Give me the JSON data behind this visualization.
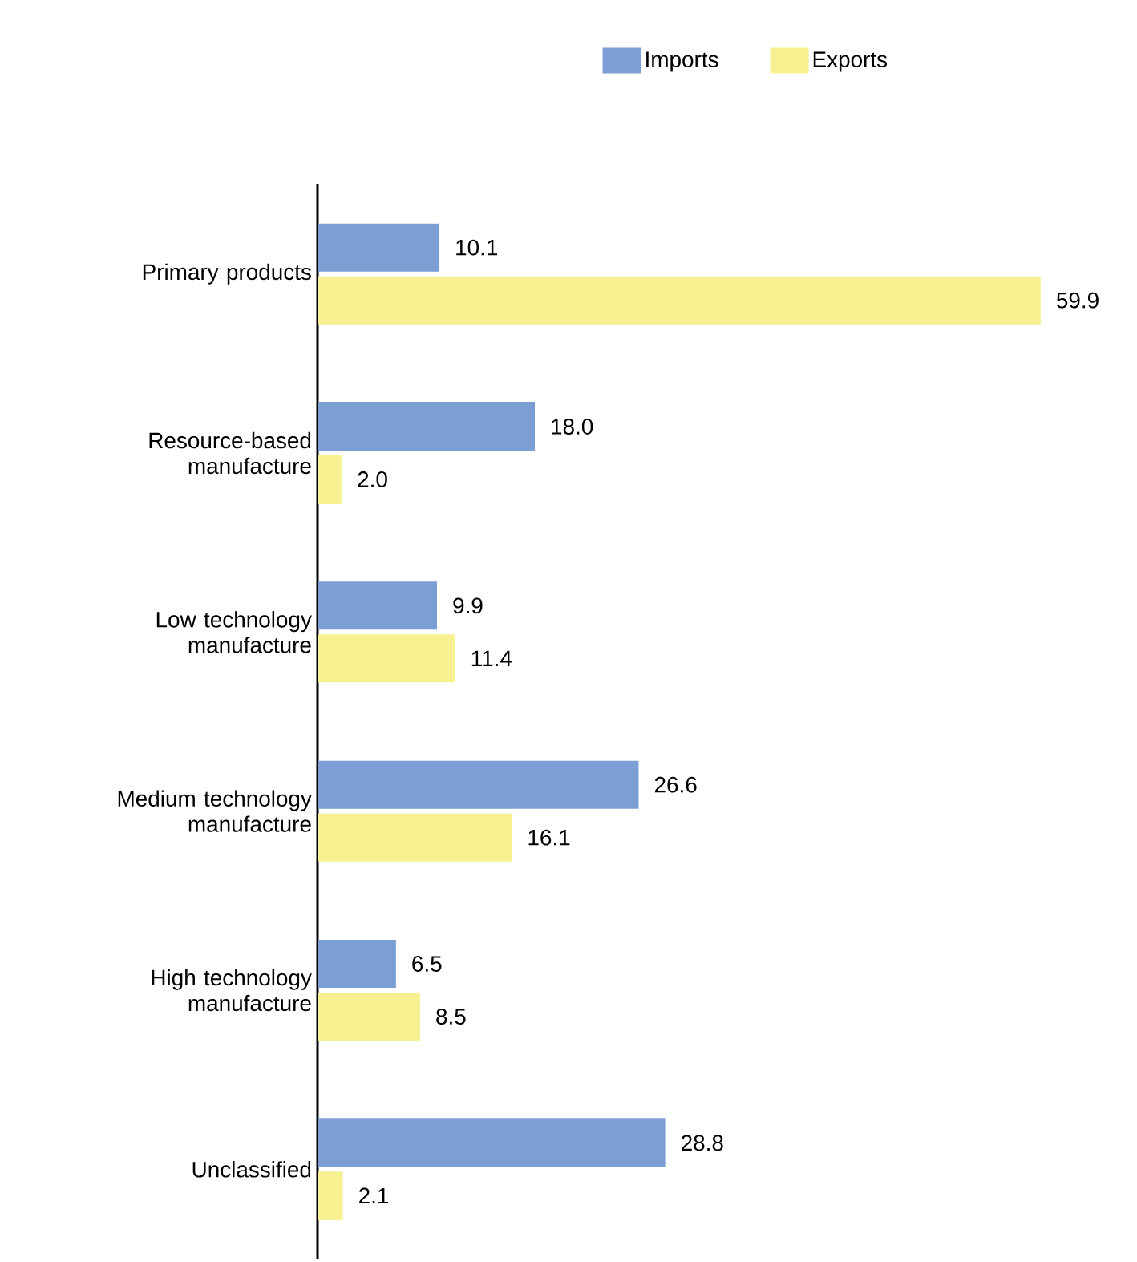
{
  "chart_data": {
    "type": "bar",
    "orientation": "horizontal",
    "legend": "top",
    "data_labels": true,
    "categories": [
      "Primary products",
      "Resource-based manufacture",
      "Low technology manufacture",
      "Medium technology manufacture",
      "High technology manufacture",
      "Unclassified"
    ],
    "series": [
      {
        "name": "Imports",
        "color": "#7b9fd4",
        "values": [
          10.1,
          18.0,
          9.9,
          26.6,
          6.5,
          28.8
        ],
        "value_labels": [
          "10.1",
          "18.0",
          "9.9",
          "26.6",
          "6.5",
          "28.8"
        ]
      },
      {
        "name": "Exports",
        "color": "#f7f192",
        "values": [
          59.9,
          2.0,
          11.4,
          16.1,
          8.5,
          2.1
        ],
        "value_labels": [
          "59.9",
          "2.0",
          "11.4",
          "16.1",
          "8.5",
          "2.1"
        ]
      }
    ]
  }
}
